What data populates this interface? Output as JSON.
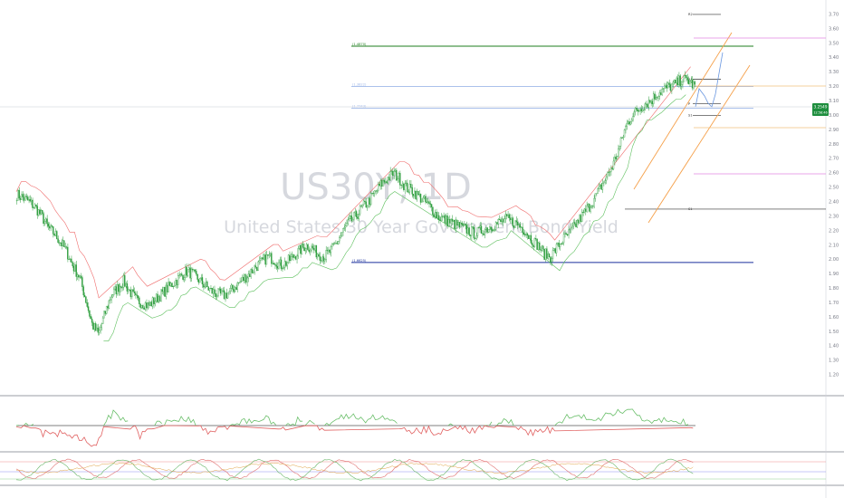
{
  "chart_data": {
    "type": "line",
    "watermark": {
      "symbol": "US30Y, 1D",
      "name": "United States 30 Year Government Bond Yield"
    },
    "price_badge": {
      "value": "3.2549",
      "sub": "12:58:46",
      "color": "#1e8e3e"
    },
    "price_range": [
      1.1,
      3.75
    ],
    "right_axis_ticks": [
      "3.70",
      "3.60",
      "3.50",
      "3.40",
      "3.30",
      "3.20",
      "3.10",
      "3.00",
      "2.90",
      "2.80",
      "2.70",
      "2.60",
      "2.50",
      "2.40",
      "2.30",
      "2.20",
      "2.10",
      "2.00",
      "1.90",
      "1.80",
      "1.70",
      "1.60",
      "1.50",
      "1.40",
      "1.30",
      "1.20"
    ],
    "levels": [
      {
        "label": "(1.4870)",
        "value": 3.48,
        "color": "#1e7e1e"
      },
      {
        "label": "(1.3822)",
        "value": 3.2,
        "color": "#9fb8e8"
      },
      {
        "label": "(1.7743)",
        "value": 3.05,
        "color": "#9fb8e8"
      },
      {
        "label": "(1.6625)",
        "value": 1.98,
        "color": "#1a2f9c"
      }
    ],
    "pivots": [
      {
        "label": "R2",
        "value": 3.7
      },
      {
        "label": "R1",
        "value": 3.25
      },
      {
        "label": "P",
        "value": 3.08
      },
      {
        "label": "S1",
        "value": 3.0
      },
      {
        "label": "S1",
        "value": 2.35
      }
    ],
    "candles_close": [
      2.45,
      2.43,
      2.4,
      2.36,
      2.3,
      2.22,
      2.18,
      2.12,
      2.05,
      1.95,
      1.88,
      1.72,
      1.55,
      1.48,
      1.62,
      1.75,
      1.8,
      1.85,
      1.78,
      1.72,
      1.7,
      1.68,
      1.72,
      1.76,
      1.8,
      1.84,
      1.88,
      1.92,
      1.9,
      1.86,
      1.82,
      1.78,
      1.76,
      1.75,
      1.78,
      1.82,
      1.86,
      1.9,
      1.95,
      1.98,
      2.02,
      2.0,
      1.96,
      1.98,
      2.02,
      2.06,
      2.1,
      2.08,
      2.04,
      2.02,
      2.06,
      2.12,
      2.2,
      2.26,
      2.3,
      2.36,
      2.4,
      2.46,
      2.52,
      2.56,
      2.6,
      2.56,
      2.5,
      2.48,
      2.44,
      2.4,
      2.36,
      2.3,
      2.28,
      2.26,
      2.24,
      2.22,
      2.2,
      2.18,
      2.2,
      2.22,
      2.24,
      2.26,
      2.28,
      2.26,
      2.24,
      2.2,
      2.14,
      2.1,
      2.04,
      2.02,
      2.08,
      2.14,
      2.18,
      2.24,
      2.3,
      2.36,
      2.42,
      2.5,
      2.58,
      2.66,
      2.78,
      2.92,
      3.0,
      3.04,
      3.08,
      3.1,
      3.15,
      3.18,
      3.2,
      3.22,
      3.25,
      3.24,
      3.2
    ]
  }
}
